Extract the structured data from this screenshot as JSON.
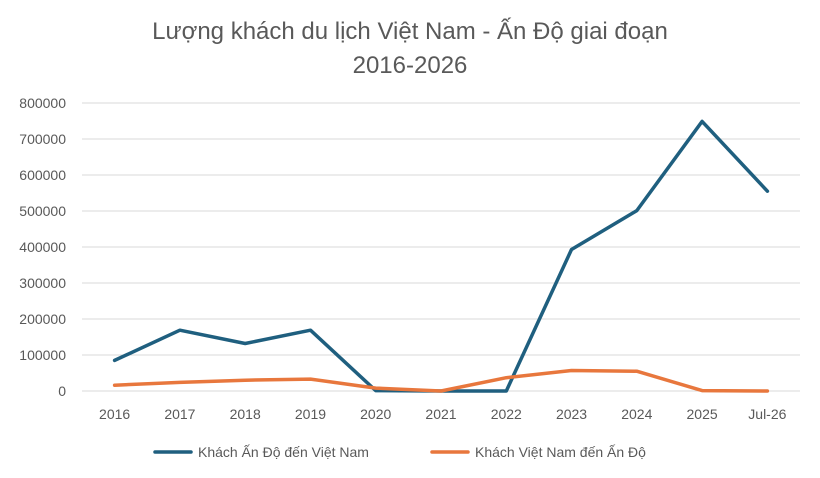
{
  "chart_data": {
    "type": "line",
    "title_lines": [
      "Lượng khách du lịch Việt Nam - Ấn Độ giai đoạn",
      "2016-2026"
    ],
    "categories": [
      "2016",
      "2017",
      "2018",
      "2019",
      "2020",
      "2021",
      "2022",
      "2023",
      "2024",
      "2025",
      "Jul-26"
    ],
    "y_ticks": [
      "0",
      "100000",
      "200000",
      "300000",
      "400000",
      "500000",
      "600000",
      "700000",
      "800000"
    ],
    "ylim": [
      0,
      800000
    ],
    "grid": true,
    "legend_position": "bottom",
    "series": [
      {
        "name": "Khách Ấn Độ đến Việt Nam",
        "color": "#1F5F7F",
        "values": [
          85000,
          169000,
          132000,
          169000,
          1000,
          0,
          0,
          393000,
          501000,
          749000,
          555000
        ]
      },
      {
        "name": "Khách Việt Nam đến Ấn Độ",
        "color": "#E8773D",
        "values": [
          16000,
          24000,
          30000,
          33000,
          8000,
          0,
          37000,
          57000,
          55000,
          1000,
          0
        ]
      }
    ]
  }
}
